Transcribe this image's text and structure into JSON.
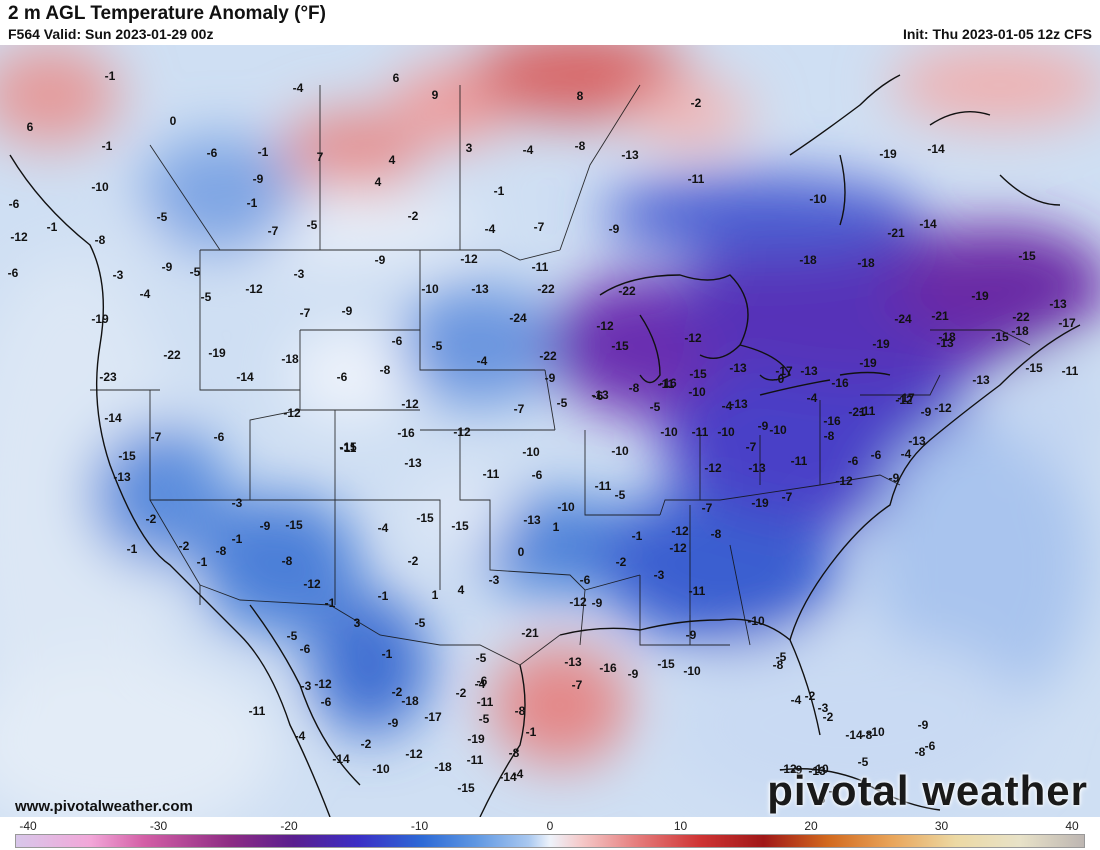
{
  "header": {
    "title": "2 m AGL Temperature Anomaly (°F)",
    "valid": "F564 Valid: Sun 2023-01-29 00z",
    "init": "Init: Thu 2023-01-05 12z CFS"
  },
  "footer": {
    "website": "www.pivotalweather.com",
    "brand": "pivotal weather"
  },
  "colorbar": {
    "ticks": [
      "-40",
      "-30",
      "-20",
      "-10",
      "0",
      "10",
      "20",
      "30",
      "40"
    ],
    "colors": {
      "cold_extreme": "#d8c7ea",
      "purple": "#5a1f8f",
      "blue": "#2d6ad6",
      "neutral": "#eef3fb",
      "red": "#cf3434",
      "warm_extreme": "#bdb6b2"
    }
  },
  "map_labels": [
    "-1",
    "-4",
    "6",
    "9",
    "8",
    "0",
    "6",
    "-1",
    "-6",
    "-1",
    "7",
    "4",
    "4",
    "3",
    "-4",
    "-1",
    "-10",
    "-9",
    "-1",
    "-5",
    "-7",
    "-5",
    "-2",
    "-4",
    "-7",
    "-9",
    "-13",
    "-8",
    "-2",
    "-11",
    "-10",
    "-14",
    "-1",
    "-8",
    "-6",
    "-9",
    "-3",
    "-5",
    "-12",
    "-3",
    "-7",
    "-4",
    "-5",
    "-9",
    "-10",
    "-12",
    "-11",
    "-13",
    "-24",
    "-22",
    "-22",
    "-12",
    "-15",
    "-12",
    "-22",
    "-16",
    "-15",
    "-13",
    "-13",
    "-18",
    "-18",
    "-24",
    "-21",
    "-19",
    "-18",
    "-22",
    "-19",
    "-18",
    "-13",
    "-15",
    "-14",
    "-19",
    "-21",
    "-17",
    "-19",
    "-23",
    "-22",
    "-19",
    "-14",
    "-18",
    "-9",
    "-6",
    "-6",
    "-8",
    "-12",
    "-5",
    "-4",
    "-9",
    "-6",
    "-8",
    "-11",
    "-10",
    "-4",
    "-0",
    "-4",
    "-9",
    "-13",
    "-16",
    "-21",
    "-19",
    "-15",
    "-13",
    "-12",
    "-17",
    "-13",
    "-15",
    "-11",
    "-14",
    "-7",
    "-15",
    "-6",
    "-12",
    "-15",
    "-16",
    "-12",
    "-13",
    "-11",
    "-11",
    "-10",
    "-6",
    "-7",
    "-5",
    "-13",
    "-5",
    "-10",
    "-11",
    "-10",
    "-7",
    "-10",
    "-17",
    "-16",
    "-11",
    "-12",
    "-9",
    "-13",
    "-4",
    "-6",
    "-9",
    "-12",
    "-6",
    "-8",
    "-11",
    "-13",
    "-12",
    "-7",
    "-8",
    "-12",
    "-1",
    "-2",
    "-3",
    "-6",
    "-9",
    "-12",
    "-5",
    "-10",
    "-11",
    "-10",
    "-13",
    "1",
    "0",
    "-3",
    "4",
    "1",
    "-2",
    "-15",
    "-15",
    "-4",
    "-1",
    "-1",
    "3",
    "-6",
    "-3",
    "-6",
    "-1",
    "-2",
    "-5",
    "-5",
    "-6",
    "-2",
    "-5",
    "-8",
    "-8",
    "-4",
    "-1",
    "-7",
    "-9",
    "-10",
    "-10",
    "-5",
    "-8",
    "-2",
    "-3",
    "-4",
    "-2",
    "-9",
    "-10",
    "-14",
    "-5",
    "-10",
    "-8",
    "-13",
    "-6",
    "-5",
    "-12",
    "-9",
    "-6",
    "-8",
    "-6",
    "-12",
    "-13",
    "-2",
    "-1",
    "-2",
    "-1",
    "-8",
    "-3",
    "-9",
    "-1",
    "-15",
    "-8",
    "-12",
    "-5",
    "-12",
    "-11",
    "-4",
    "-2",
    "-14",
    "-9",
    "-12",
    "-10",
    "-18",
    "-17",
    "-18",
    "-11",
    "-15",
    "-14",
    "-19",
    "-11",
    "-4",
    "-21",
    "-13",
    "-16",
    "-15",
    "-9",
    "-11",
    "-12",
    "-19",
    "-7"
  ]
}
